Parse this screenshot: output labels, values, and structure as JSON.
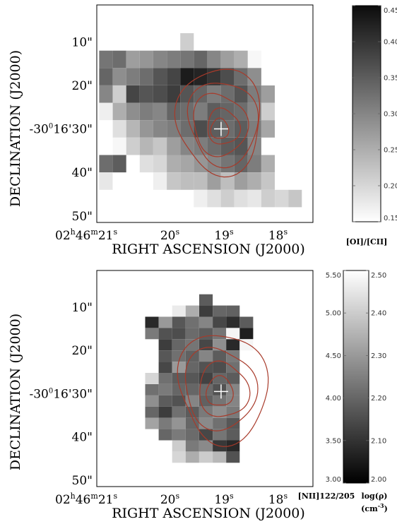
{
  "chart_data": [
    {
      "type": "heatmap",
      "xlabel": "RIGHT ASCENSION (J2000)",
      "ylabel": "DECLINATION (J2000)",
      "x_ticks": [
        {
          "ra_s": 21,
          "h": "02",
          "m": "46",
          "s": "21"
        },
        {
          "ra_s": 20,
          "s": "20"
        },
        {
          "ra_s": 19,
          "s": "19"
        },
        {
          "ra_s": 18,
          "s": "18"
        }
      ],
      "y_ticks": [
        {
          "dec_arcsec": 10,
          "label": "10\""
        },
        {
          "dec_arcsec": 20,
          "label": "20\""
        },
        {
          "dec_arcsec": 30,
          "deg": "-30",
          "arcmin": "16",
          "label": "30\""
        },
        {
          "dec_arcsec": 40,
          "label": "40\""
        },
        {
          "dec_arcsec": 50,
          "label": "50\""
        }
      ],
      "x_range_s": [
        21.3,
        17.3
      ],
      "y_range_arcsec": [
        1.5,
        51.5
      ],
      "marker": {
        "ra_s": 19.0,
        "dec_arcsec": 30.0,
        "symbol": "+"
      },
      "colorbar": {
        "label": "[OI]/[CII]",
        "range": [
          0.15,
          0.45
        ],
        "ticks": [
          "0.15",
          "0.20",
          "0.25",
          "0.30",
          "0.35",
          "0.40",
          "0.45"
        ],
        "colormap": "white-to-black"
      },
      "contours": {
        "color": "#a83a2a",
        "count": 5
      },
      "pixel_grid": {
        "cols": 16,
        "first_col_ra_s": 21.13,
        "col_step_s": 0.25,
        "first_row_dec_arcsec": 6.0,
        "row_step_arcsec": 4.0,
        "values": [
          [
            null,
            null,
            null,
            null,
            null,
            null,
            null,
            null,
            null,
            null,
            null,
            null,
            null,
            null,
            null,
            null
          ],
          [
            null,
            null,
            null,
            null,
            null,
            null,
            0.21,
            null,
            null,
            null,
            null,
            null,
            null,
            null,
            null,
            null
          ],
          [
            0.32,
            0.33,
            0.27,
            0.28,
            0.3,
            0.31,
            0.32,
            0.34,
            0.3,
            0.27,
            0.25,
            0.16,
            null,
            null,
            null,
            null
          ],
          [
            0.34,
            0.29,
            0.31,
            0.33,
            0.36,
            0.38,
            0.43,
            0.42,
            0.4,
            0.37,
            0.33,
            0.29,
            null,
            null,
            null,
            null
          ],
          [
            0.3,
            0.21,
            0.38,
            0.36,
            0.37,
            0.39,
            0.36,
            0.34,
            0.31,
            0.33,
            0.36,
            0.31,
            0.27,
            null,
            null,
            null
          ],
          [
            0.17,
            0.25,
            0.29,
            0.31,
            0.3,
            0.34,
            0.33,
            0.31,
            0.35,
            0.34,
            0.33,
            0.3,
            0.21,
            null,
            null,
            null
          ],
          [
            null,
            0.19,
            0.24,
            0.28,
            0.3,
            0.31,
            0.33,
            0.37,
            0.35,
            0.33,
            0.35,
            0.31,
            0.26,
            null,
            null,
            null
          ],
          [
            null,
            0.16,
            0.21,
            0.24,
            0.22,
            0.27,
            0.3,
            0.31,
            0.33,
            0.35,
            0.36,
            0.3,
            null,
            null,
            null,
            null
          ],
          [
            0.33,
            0.35,
            null,
            0.19,
            0.2,
            0.25,
            0.26,
            0.28,
            0.3,
            0.32,
            0.34,
            0.31,
            0.25,
            null,
            null,
            null
          ],
          [
            0.18,
            null,
            null,
            null,
            0.17,
            0.22,
            0.23,
            0.23,
            0.27,
            0.23,
            0.27,
            0.25,
            0.22,
            null,
            null,
            null
          ],
          [
            null,
            null,
            null,
            null,
            null,
            null,
            null,
            0.17,
            0.19,
            0.21,
            0.19,
            0.18,
            0.21,
            0.2,
            0.22,
            null
          ],
          [
            null,
            null,
            null,
            null,
            null,
            null,
            null,
            null,
            null,
            null,
            null,
            null,
            null,
            null,
            null,
            null
          ]
        ]
      }
    },
    {
      "type": "heatmap",
      "xlabel": "RIGHT ASCENSION (J2000)",
      "ylabel": "DECLINATION (J2000)",
      "x_ticks": [
        {
          "ra_s": 21,
          "h": "02",
          "m": "46",
          "s": "21"
        },
        {
          "ra_s": 20,
          "s": "20"
        },
        {
          "ra_s": 19,
          "s": "19"
        },
        {
          "ra_s": 18,
          "s": "18"
        }
      ],
      "y_ticks": [
        {
          "dec_arcsec": 10,
          "label": "10\""
        },
        {
          "dec_arcsec": 20,
          "label": "20\""
        },
        {
          "dec_arcsec": 30,
          "deg": "-30",
          "arcmin": "16",
          "label": "30\""
        },
        {
          "dec_arcsec": 40,
          "label": "40\""
        },
        {
          "dec_arcsec": 50,
          "label": "50\""
        }
      ],
      "x_range_s": [
        21.3,
        17.3
      ],
      "y_range_arcsec": [
        1.5,
        51.5
      ],
      "marker": {
        "ra_s": 19.0,
        "dec_arcsec": 29.5,
        "symbol": "+"
      },
      "colorbar": {
        "label": "[NII]122/205",
        "range": [
          3.0,
          5.5
        ],
        "ticks": [
          "3.00",
          "3.50",
          "4.00",
          "4.50",
          "5.00",
          "5.50"
        ],
        "secondary_label": "log(ρ)",
        "secondary_unit": "(cm",
        "secondary_unit_sup": "-3",
        "secondary_unit_end": ")",
        "secondary_range": [
          2.0,
          2.5
        ],
        "secondary_ticks": [
          "2.00",
          "2.10",
          "2.20",
          "2.30",
          "2.40",
          "2.50"
        ],
        "colormap": "black-to-white"
      },
      "contours": {
        "color": "#a83a2a",
        "count": 4
      },
      "pixel_grid": {
        "cols": 8,
        "first_col_ra_s": 20.28,
        "col_step_s": 0.25,
        "first_row_dec_arcsec": 8.3,
        "row_step_arcsec": 2.6,
        "values": [
          [
            null,
            null,
            null,
            null,
            3.9,
            null,
            null,
            null
          ],
          [
            null,
            null,
            5.3,
            4.7,
            3.6,
            4.0,
            3.95,
            null
          ],
          [
            3.4,
            4.5,
            3.85,
            4.1,
            4.3,
            3.7,
            3.45,
            3.9
          ],
          [
            4.2,
            3.8,
            3.75,
            4.05,
            3.9,
            4.15,
            5.4,
            3.3
          ],
          [
            null,
            3.6,
            4.0,
            4.15,
            3.7,
            4.4,
            3.4,
            5.4
          ],
          [
            null,
            3.85,
            4.1,
            3.95,
            4.3,
            3.9,
            4.2,
            null
          ],
          [
            null,
            3.7,
            4.5,
            4.0,
            3.8,
            3.75,
            4.1,
            null
          ],
          [
            5.1,
            4.1,
            3.9,
            3.85,
            3.65,
            4.0,
            3.9,
            null
          ],
          [
            4.1,
            4.2,
            4.0,
            4.0,
            4.05,
            3.8,
            4.3,
            null
          ],
          [
            4.4,
            3.9,
            3.8,
            4.3,
            3.95,
            4.15,
            4.3,
            null
          ],
          [
            4.0,
            3.6,
            4.1,
            3.9,
            4.2,
            4.4,
            4.2,
            null
          ],
          [
            4.6,
            4.2,
            4.45,
            4.0,
            4.35,
            4.1,
            3.85,
            null
          ],
          [
            null,
            4.0,
            4.2,
            4.05,
            3.7,
            4.15,
            3.9,
            null
          ],
          [
            null,
            null,
            5.0,
            4.2,
            4.35,
            3.55,
            3.4,
            null
          ],
          [
            null,
            null,
            5.1,
            4.7,
            5.0,
            4.8,
            3.8,
            null
          ],
          [
            null,
            null,
            null,
            null,
            null,
            null,
            null,
            null
          ]
        ]
      }
    }
  ]
}
